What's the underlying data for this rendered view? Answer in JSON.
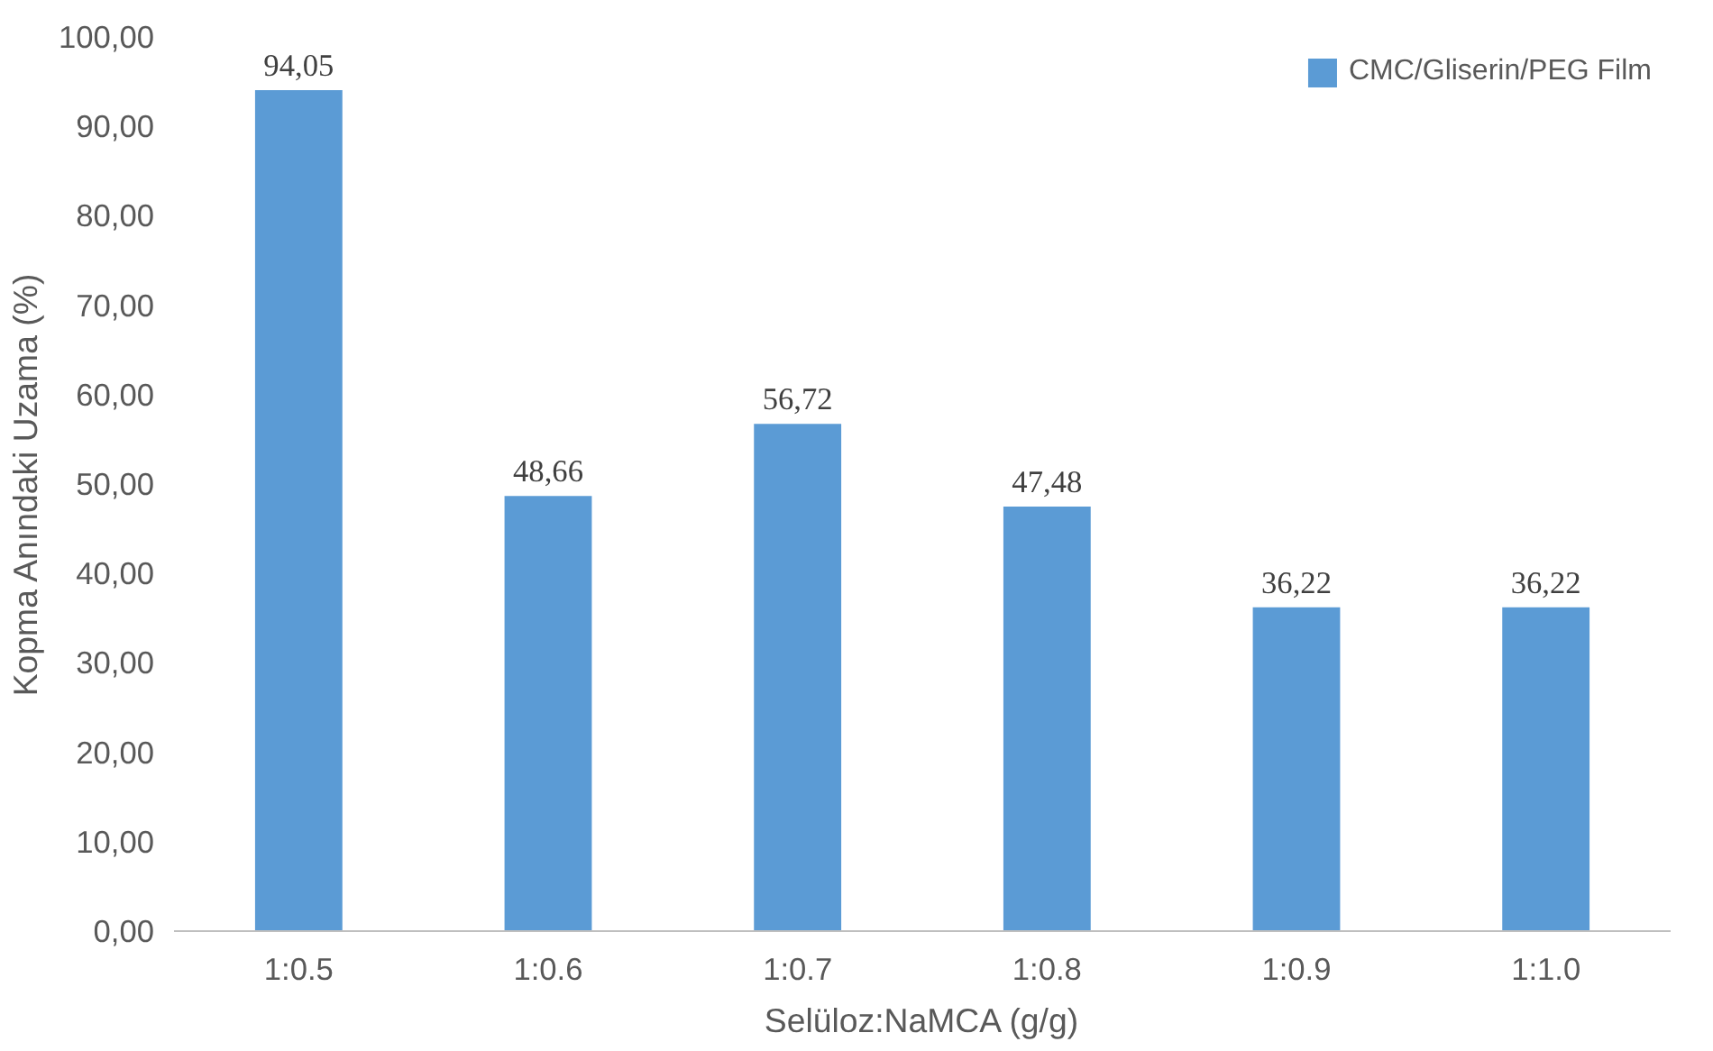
{
  "chart_data": {
    "type": "bar",
    "xlabel": "Selüloz:NaMCA (g/g)",
    "ylabel": "Kopma Anındaki Uzama (%)",
    "categories": [
      "1:0.5",
      "1:0.6",
      "1:0.7",
      "1:0.8",
      "1:0.9",
      "1:1.0"
    ],
    "series": [
      {
        "name": "CMC/Gliserin/PEG Film",
        "color": "#5b9bd5",
        "values": [
          94.05,
          48.66,
          56.72,
          47.48,
          36.22,
          36.22
        ],
        "value_labels": [
          "94,05",
          "48,66",
          "56,72",
          "47,48",
          "36,22",
          "36,22"
        ]
      }
    ],
    "ylim": [
      0,
      100
    ],
    "yticks": [
      {
        "value": 0,
        "label": "0,00"
      },
      {
        "value": 10,
        "label": "10,00"
      },
      {
        "value": 20,
        "label": "20,00"
      },
      {
        "value": 30,
        "label": "30,00"
      },
      {
        "value": 40,
        "label": "40,00"
      },
      {
        "value": 50,
        "label": "50,00"
      },
      {
        "value": 60,
        "label": "60,00"
      },
      {
        "value": 70,
        "label": "70,00"
      },
      {
        "value": 80,
        "label": "80,00"
      },
      {
        "value": 90,
        "label": "90,00"
      },
      {
        "value": 100,
        "label": "100,00"
      }
    ],
    "grid": false,
    "legend": "top right"
  }
}
